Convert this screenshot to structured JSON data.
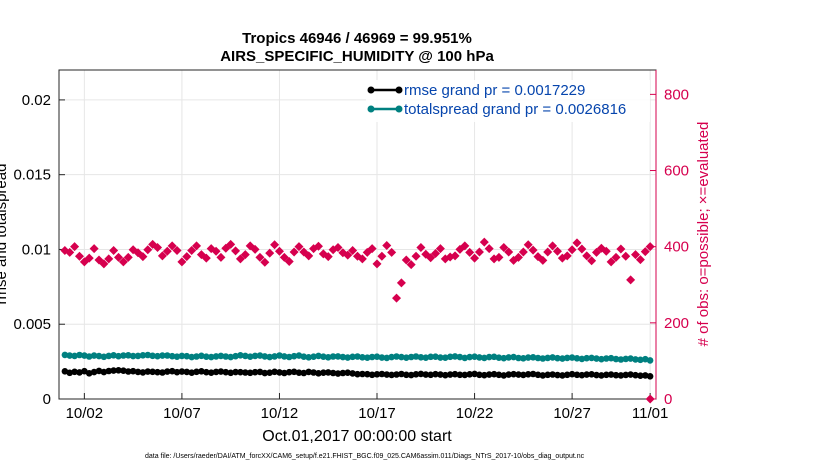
{
  "chart_data": {
    "type": "line",
    "title": "Tropics 46946 / 46969 = 99.951%",
    "subtitle": "AIRS_SPECIFIC_HUMIDITY @ 100 hPa",
    "xlabel": "Oct.01,2017 00:00:00 start",
    "ylabel_left": "rmse and totalspread",
    "ylabel_right": "# of obs: o=possible; ×=evaluated",
    "xlim": [
      0.7,
      31.3
    ],
    "ylim_left": [
      0,
      0.022
    ],
    "ylim_right": [
      0,
      864
    ],
    "x_ticks": [
      {
        "x": 2,
        "label": "10/02"
      },
      {
        "x": 7,
        "label": "10/07"
      },
      {
        "x": 12,
        "label": "10/12"
      },
      {
        "x": 17,
        "label": "10/17"
      },
      {
        "x": 22,
        "label": "10/22"
      },
      {
        "x": 27,
        "label": "10/27"
      },
      {
        "x": 31,
        "label": "11/01"
      }
    ],
    "y_ticks_left": [
      {
        "v": 0,
        "label": "0"
      },
      {
        "v": 0.005,
        "label": "0.005"
      },
      {
        "v": 0.01,
        "label": "0.01"
      },
      {
        "v": 0.015,
        "label": "0.015"
      },
      {
        "v": 0.02,
        "label": "0.02"
      }
    ],
    "y_ticks_right": [
      {
        "v": 0,
        "label": "0"
      },
      {
        "v": 200,
        "label": "200"
      },
      {
        "v": 400,
        "label": "400"
      },
      {
        "v": 600,
        "label": "600"
      },
      {
        "v": 800,
        "label": "800"
      }
    ],
    "grid": true,
    "legend_position": "top-right",
    "series": [
      {
        "name": "rmse grand pr = 0.0017229",
        "axis": "left",
        "color": "#000000",
        "x_start": 1.0,
        "x_step": 0.25,
        "values": [
          0.00185,
          0.00175,
          0.00182,
          0.00178,
          0.00186,
          0.00172,
          0.0018,
          0.00188,
          0.0018,
          0.00187,
          0.0019,
          0.00192,
          0.00189,
          0.00184,
          0.00186,
          0.00181,
          0.00178,
          0.00183,
          0.00182,
          0.00179,
          0.00177,
          0.00183,
          0.00186,
          0.00179,
          0.00183,
          0.00181,
          0.00176,
          0.00182,
          0.00185,
          0.00179,
          0.00176,
          0.00181,
          0.00183,
          0.00179,
          0.00175,
          0.0018,
          0.00179,
          0.00177,
          0.00175,
          0.00179,
          0.00181,
          0.00173,
          0.00176,
          0.00182,
          0.00178,
          0.00174,
          0.00179,
          0.00182,
          0.00176,
          0.00174,
          0.00181,
          0.00177,
          0.00172,
          0.00176,
          0.00178,
          0.00174,
          0.0017,
          0.00174,
          0.00176,
          0.00171,
          0.00166,
          0.00167,
          0.00166,
          0.00162,
          0.00165,
          0.00167,
          0.00163,
          0.00161,
          0.00164,
          0.00167,
          0.00162,
          0.0016,
          0.00165,
          0.00168,
          0.00163,
          0.00162,
          0.00166,
          0.00163,
          0.00159,
          0.00163,
          0.00166,
          0.00162,
          0.00161,
          0.00165,
          0.00168,
          0.00162,
          0.00159,
          0.00163,
          0.00166,
          0.00162,
          0.00158,
          0.00163,
          0.00166,
          0.00163,
          0.00161,
          0.00165,
          0.00167,
          0.00162,
          0.00158,
          0.00162,
          0.00164,
          0.0016,
          0.00158,
          0.00162,
          0.00166,
          0.00162,
          0.00159,
          0.00163,
          0.00165,
          0.0016,
          0.00158,
          0.00162,
          0.00163,
          0.00159,
          0.00158,
          0.00161,
          0.00163,
          0.00159,
          0.00156,
          0.00158,
          0.00152
        ]
      },
      {
        "name": "totalspread grand pr = 0.0026816",
        "axis": "left",
        "color": "#008080",
        "x_start": 1.0,
        "x_step": 0.25,
        "values": [
          0.00295,
          0.0029,
          0.00288,
          0.00294,
          0.0029,
          0.00284,
          0.0029,
          0.00287,
          0.00282,
          0.00288,
          0.00292,
          0.00286,
          0.00291,
          0.00292,
          0.00287,
          0.00288,
          0.00292,
          0.00294,
          0.00289,
          0.00286,
          0.0029,
          0.00291,
          0.00286,
          0.00283,
          0.00288,
          0.00286,
          0.0028,
          0.00284,
          0.00289,
          0.00283,
          0.0028,
          0.00285,
          0.00288,
          0.00284,
          0.0028,
          0.00286,
          0.00292,
          0.00288,
          0.00283,
          0.00288,
          0.0029,
          0.00285,
          0.0028,
          0.00285,
          0.00291,
          0.00285,
          0.00281,
          0.00286,
          0.0029,
          0.00283,
          0.00279,
          0.00283,
          0.00288,
          0.00283,
          0.00279,
          0.00284,
          0.00285,
          0.0028,
          0.00277,
          0.00282,
          0.00284,
          0.00279,
          0.00276,
          0.00281,
          0.00283,
          0.00277,
          0.00275,
          0.0028,
          0.00284,
          0.0028,
          0.00276,
          0.00281,
          0.00284,
          0.00279,
          0.00276,
          0.00282,
          0.00283,
          0.00277,
          0.00276,
          0.00282,
          0.00285,
          0.0028,
          0.00275,
          0.0028,
          0.00283,
          0.00278,
          0.00275,
          0.0028,
          0.00282,
          0.00276,
          0.00273,
          0.00278,
          0.0028,
          0.00274,
          0.00272,
          0.00277,
          0.00279,
          0.00274,
          0.00271,
          0.00275,
          0.00278,
          0.00273,
          0.0027,
          0.00275,
          0.00277,
          0.00272,
          0.00268,
          0.00273,
          0.00275,
          0.0027,
          0.00266,
          0.00271,
          0.00273,
          0.00267,
          0.00264,
          0.00268,
          0.0027,
          0.00265,
          0.00262,
          0.00266,
          0.00258
        ]
      },
      {
        "name": "# of obs evaluated",
        "axis": "right",
        "color": "#d6004e",
        "marker": "x",
        "x_start": 1.0,
        "x_step": 0.25,
        "values": [
          390,
          385,
          400,
          375,
          360,
          370,
          395,
          365,
          355,
          368,
          390,
          372,
          360,
          372,
          392,
          384,
          374,
          392,
          406,
          398,
          376,
          388,
          402,
          390,
          360,
          374,
          390,
          402,
          379,
          370,
          395,
          388,
          372,
          396,
          406,
          389,
          368,
          379,
          402,
          393,
          372,
          359,
          383,
          405,
          388,
          372,
          361,
          386,
          400,
          386,
          376,
          395,
          401,
          381,
          374,
          392,
          398,
          384,
          378,
          390,
          375,
          368,
          385,
          395,
          355,
          375,
          403,
          385,
          265,
          305,
          365,
          353,
          375,
          398,
          380,
          371,
          382,
          395,
          368,
          373,
          376,
          393,
          402,
          385,
          370,
          386,
          412,
          395,
          368,
          372,
          398,
          386,
          364,
          372,
          386,
          405,
          391,
          374,
          364,
          386,
          402,
          388,
          370,
          376,
          392,
          410,
          394,
          376,
          363,
          385,
          396,
          388,
          360,
          372,
          394,
          375,
          313,
          379,
          366,
          387,
          400
        ]
      },
      {
        "name": "# of obs possible",
        "axis": "right",
        "color": "#d6004e",
        "marker": "o",
        "x": [
          31.0
        ],
        "values": [
          0
        ]
      }
    ],
    "footnote": "data file: /Users/raeder/DAI/ATM_forcXX/CAM6_setup/f.e21.FHIST_BGC.f09_025.CAM6assim.011/Diags_NTrS_2017-10/obs_diag_output.nc"
  }
}
